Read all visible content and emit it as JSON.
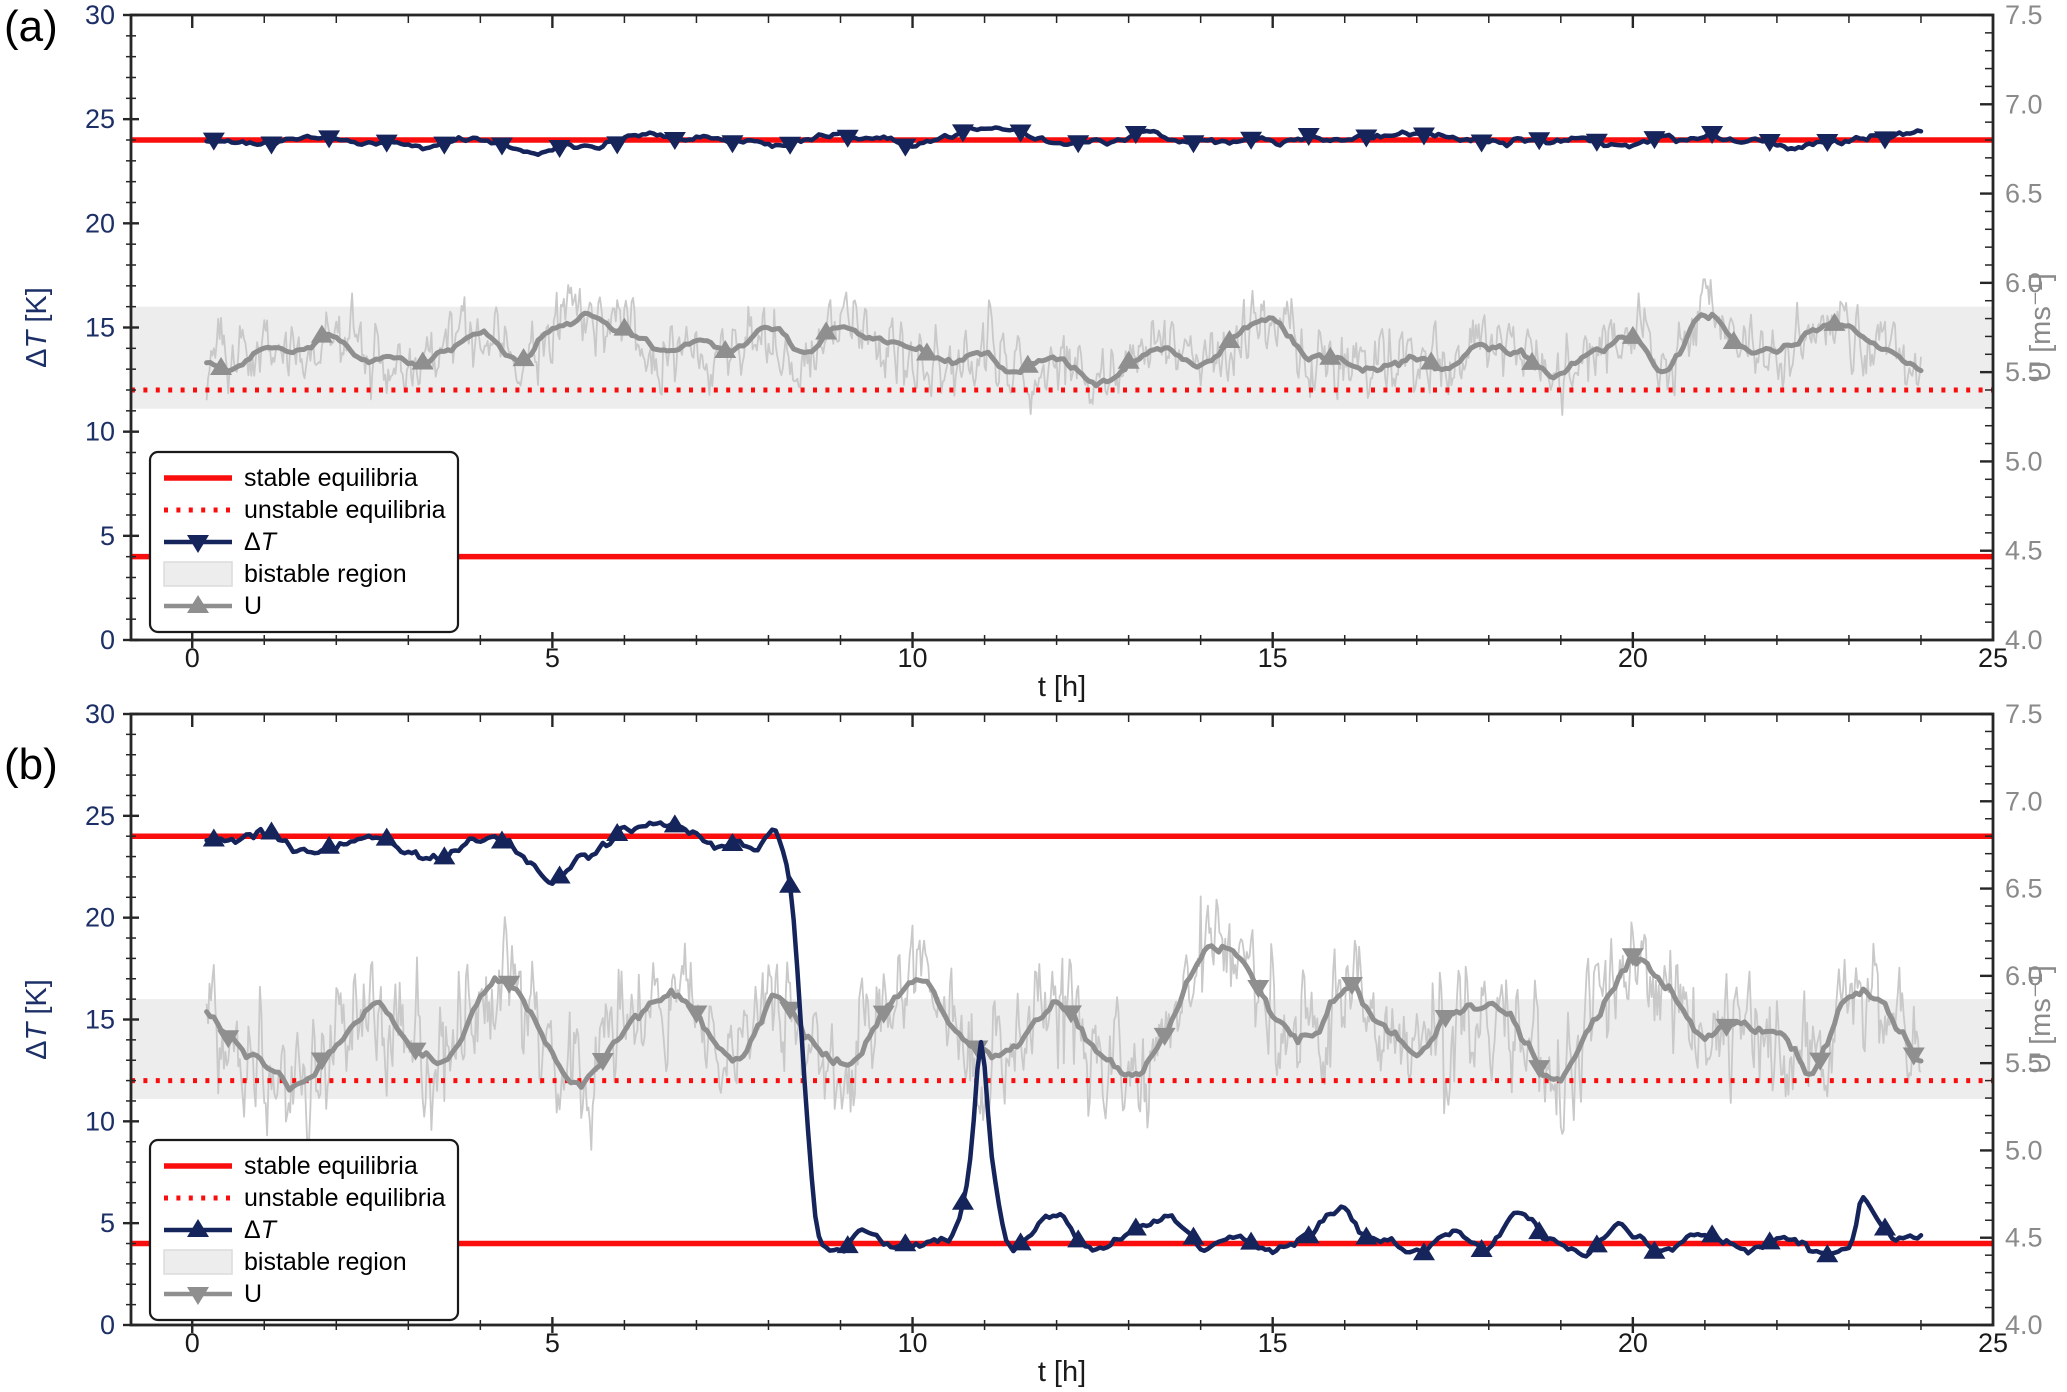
{
  "style": {
    "navy": "#16245c",
    "red": "#f90d0d",
    "gray_line": "#8f8f8f",
    "gray_raw": "#c9c9c9",
    "band_fill": "#ededed",
    "band_edge": "#dcdcdc",
    "spine": "#262626",
    "left_tick_color": "#1c2f66",
    "right_tick_color": "#8a8a8a",
    "x_tick_color": "#1a1a1a",
    "legend_border": "#1a1a1a",
    "legend_bg": "#ffffff"
  },
  "chart_data": [
    {
      "panel_label": "(a)",
      "type": "line",
      "title": "",
      "x_axis": {
        "label": "t [h]",
        "range": [
          -0.85,
          25
        ],
        "major_ticks": [
          0,
          5,
          10,
          15,
          20,
          25
        ],
        "tick_labels": [
          "0",
          "5",
          "10",
          "15",
          "20",
          "25"
        ],
        "minor_step": 1
      },
      "y_axis_left": {
        "label": "ΔT [K]",
        "range": [
          0,
          30
        ],
        "major_ticks": [
          0,
          5,
          10,
          15,
          20,
          25,
          30
        ],
        "tick_labels": [
          "0",
          "5",
          "10",
          "15",
          "20",
          "25",
          "30"
        ],
        "minor_step": 1
      },
      "y_axis_right": {
        "label": "U [ms⁻¹]",
        "range": [
          4.0,
          7.5
        ],
        "major_ticks": [
          4.0,
          4.5,
          5.0,
          5.5,
          6.0,
          6.5,
          7.0,
          7.5
        ],
        "tick_labels": [
          "4.0",
          "4.5",
          "5.0",
          "5.5",
          "6.0",
          "6.5",
          "7.0",
          "7.5"
        ],
        "minor_step": 0.1
      },
      "equilibria": {
        "stable_dT": [
          24,
          4
        ],
        "unstable_dT": [
          12
        ]
      },
      "bistable_region_dT": [
        11.1,
        16.0
      ],
      "grid": false,
      "legend_position": "lower left",
      "series": [
        {
          "id": "delta_T",
          "name": "ΔT",
          "axis": "left",
          "color_key": "navy",
          "marker": "down",
          "marker_t0": 0.3,
          "marker_dt": 0.8,
          "t_start": 0.2,
          "t_end": 24,
          "jitter": 0.18,
          "seed": 11,
          "keypoints": {
            "t0": 0,
            "dt": 1,
            "v": [
              24.0,
              23.9,
              24.1,
              23.8,
              24.0,
              23.7,
              24.2,
              24.3,
              23.9,
              24.1,
              24.0,
              24.4,
              23.8,
              24.2,
              24.0,
              23.9,
              24.1,
              24.3,
              23.8,
              24.0,
              23.9,
              24.1,
              23.8,
              24.0,
              24.1
            ]
          }
        },
        {
          "id": "U",
          "name": "U",
          "axis": "right",
          "color_key": "gray_line",
          "marker": "up",
          "marker_t0": 0.4,
          "marker_dt": 1.4,
          "t_start": 0.2,
          "t_end": 24,
          "jitter": 0.026,
          "seed": 22,
          "raw_sigma": 0.1,
          "raw_seed": 23,
          "raw_clamp": [
            5.26,
            6.02
          ],
          "raw_color_key": "gray_raw",
          "keypoints": {
            "t0": 0,
            "dt": 0.5,
            "v": [
              5.61,
              5.58,
              5.66,
              5.62,
              5.69,
              5.59,
              5.54,
              5.63,
              5.7,
              5.56,
              5.73,
              5.82,
              5.74,
              5.6,
              5.67,
              5.61,
              5.74,
              5.58,
              5.81,
              5.66,
              5.59,
              5.53,
              5.62,
              5.49,
              5.55,
              5.45,
              5.59,
              5.65,
              5.54,
              5.69,
              5.76,
              5.62,
              5.56,
              5.51,
              5.6,
              5.53,
              5.66,
              5.59,
              5.47,
              5.61,
              5.68,
              5.52,
              5.82,
              5.65,
              5.58,
              5.72,
              5.74,
              5.61,
              5.56
            ]
          }
        }
      ],
      "legend": [
        {
          "label": "stable equilibria",
          "sample": "solid_line",
          "color_key": "red"
        },
        {
          "label": "unstable equilibria",
          "sample": "dotted_line",
          "color_key": "red"
        },
        {
          "label": "ΔT",
          "sample": "marker_line",
          "color_key": "navy",
          "marker": "down"
        },
        {
          "label": "bistable region",
          "sample": "patch",
          "color_key": "band_fill"
        },
        {
          "label": "U",
          "sample": "marker_line",
          "color_key": "gray_line",
          "marker": "up"
        }
      ]
    },
    {
      "panel_label": "(b)",
      "type": "line",
      "title": "",
      "x_axis": {
        "label": "t [h]",
        "range": [
          -0.85,
          25
        ],
        "major_ticks": [
          0,
          5,
          10,
          15,
          20,
          25
        ],
        "tick_labels": [
          "0",
          "5",
          "10",
          "15",
          "20",
          "25"
        ],
        "minor_step": 1
      },
      "y_axis_left": {
        "label": "ΔT [K]",
        "range": [
          0,
          30
        ],
        "major_ticks": [
          0,
          5,
          10,
          15,
          20,
          25,
          30
        ],
        "tick_labels": [
          "0",
          "5",
          "10",
          "15",
          "20",
          "25",
          "30"
        ],
        "minor_step": 1
      },
      "y_axis_right": {
        "label": "U [ms⁻¹]",
        "range": [
          4.0,
          7.5
        ],
        "major_ticks": [
          4.0,
          4.5,
          5.0,
          5.5,
          6.0,
          6.5,
          7.0,
          7.5
        ],
        "tick_labels": [
          "4.0",
          "4.5",
          "5.0",
          "5.5",
          "6.0",
          "6.5",
          "7.0",
          "7.5"
        ],
        "minor_step": 0.1
      },
      "equilibria": {
        "stable_dT": [
          24,
          4
        ],
        "unstable_dT": [
          12
        ]
      },
      "bistable_region_dT": [
        11.1,
        16.0
      ],
      "grid": false,
      "legend_position": "lower left",
      "series": [
        {
          "id": "delta_T",
          "name": "ΔT",
          "axis": "left",
          "color_key": "navy",
          "marker": "up",
          "marker_t0": 0.3,
          "marker_dt": 0.8,
          "t_start": 0.2,
          "t_end": 24,
          "jitter": 0.3,
          "seed": 33,
          "keypoints": {
            "t": [
              0,
              0.5,
              1,
              1.5,
              2,
              2.5,
              3,
              3.5,
              4,
              4.3,
              4.7,
              5,
              5.3,
              5.7,
              6,
              6.5,
              7,
              7.3,
              7.6,
              7.9,
              8.05,
              8.2,
              8.35,
              8.5,
              8.65,
              8.8,
              9,
              9.3,
              9.6,
              10,
              10.3,
              10.6,
              10.8,
              10.95,
              11.1,
              11.3,
              11.5,
              12,
              12.3,
              12.5,
              13,
              13.5,
              14,
              14.5,
              15,
              15.5,
              16,
              16.3,
              16.5,
              17,
              17.5,
              18,
              18.5,
              19,
              19.5,
              20,
              20.5,
              21,
              21.5,
              22,
              22.5,
              23,
              23.2,
              23.5,
              24
            ],
            "v": [
              23.9,
              23.4,
              23.8,
              23.2,
              23.6,
              24.0,
              23.3,
              22.6,
              23.9,
              24.1,
              22.4,
              21.2,
              22.3,
              23.3,
              24.2,
              24.3,
              24.2,
              23.6,
              24.0,
              23.8,
              24.4,
              23.0,
              19.5,
              12.0,
              5.5,
              4.1,
              3.7,
              4.4,
              3.6,
              4.1,
              4.4,
              4.8,
              8.0,
              13.6,
              8.2,
              4.6,
              4.0,
              5.7,
              4.0,
              3.6,
              4.4,
              5.2,
              3.9,
              4.3,
              3.6,
              4.7,
              5.9,
              4.4,
              4.1,
              3.7,
              4.5,
              4.0,
              5.6,
              3.7,
              4.2,
              4.6,
              3.8,
              4.4,
              3.5,
              4.7,
              4.1,
              3.9,
              6.0,
              4.2,
              4.5
            ]
          }
        },
        {
          "id": "U",
          "name": "U",
          "axis": "right",
          "color_key": "gray_line",
          "marker": "down",
          "marker_t0": 0.5,
          "marker_dt": 1.3,
          "t_start": 0.2,
          "t_end": 24,
          "jitter": 0.041,
          "seed": 44,
          "raw_sigma": 0.181,
          "raw_seed": 45,
          "raw_clamp": [
            4.96,
            6.5
          ],
          "raw_color_key": "gray_raw",
          "keypoints": {
            "t0": 0,
            "dt": 0.5,
            "v": [
              5.87,
              5.66,
              5.49,
              5.39,
              5.58,
              5.84,
              5.63,
              5.46,
              5.86,
              5.91,
              5.53,
              5.42,
              5.73,
              5.89,
              5.81,
              5.52,
              5.88,
              5.68,
              5.47,
              5.77,
              5.96,
              5.74,
              5.51,
              5.66,
              5.82,
              5.56,
              5.44,
              5.7,
              6.08,
              6.14,
              5.83,
              5.64,
              5.93,
              5.75,
              5.59,
              5.73,
              5.86,
              5.61,
              5.48,
              5.79,
              6.09,
              5.89,
              5.62,
              5.76,
              5.67,
              5.49,
              5.9,
              5.82,
              5.6
            ]
          }
        }
      ],
      "legend": [
        {
          "label": "stable equilibria",
          "sample": "solid_line",
          "color_key": "red"
        },
        {
          "label": "unstable equilibria",
          "sample": "dotted_line",
          "color_key": "red"
        },
        {
          "label": "ΔT",
          "sample": "marker_line",
          "color_key": "navy",
          "marker": "up"
        },
        {
          "label": "bistable region",
          "sample": "patch",
          "color_key": "band_fill"
        },
        {
          "label": "U",
          "sample": "marker_line",
          "color_key": "gray_line",
          "marker": "down"
        }
      ]
    }
  ]
}
